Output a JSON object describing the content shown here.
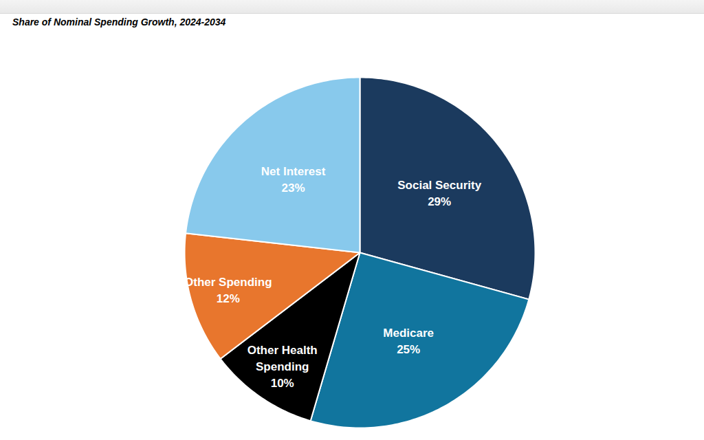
{
  "chart_data": {
    "type": "pie",
    "title": "Share of Nominal Spending Growth, 2024-2034",
    "categories": [
      "Social Security",
      "Medicare",
      "Other Health Spending",
      "Other Spending",
      "Net Interest"
    ],
    "values": [
      29,
      25,
      10,
      12,
      23
    ],
    "value_labels": [
      "29%",
      "25%",
      "10%",
      "12%",
      "23%"
    ],
    "colors": [
      "#1b3a5e",
      "#11759e",
      "#000000",
      "#e8762d",
      "#88c9ec"
    ],
    "data_labels": true,
    "tick_labels": false
  }
}
